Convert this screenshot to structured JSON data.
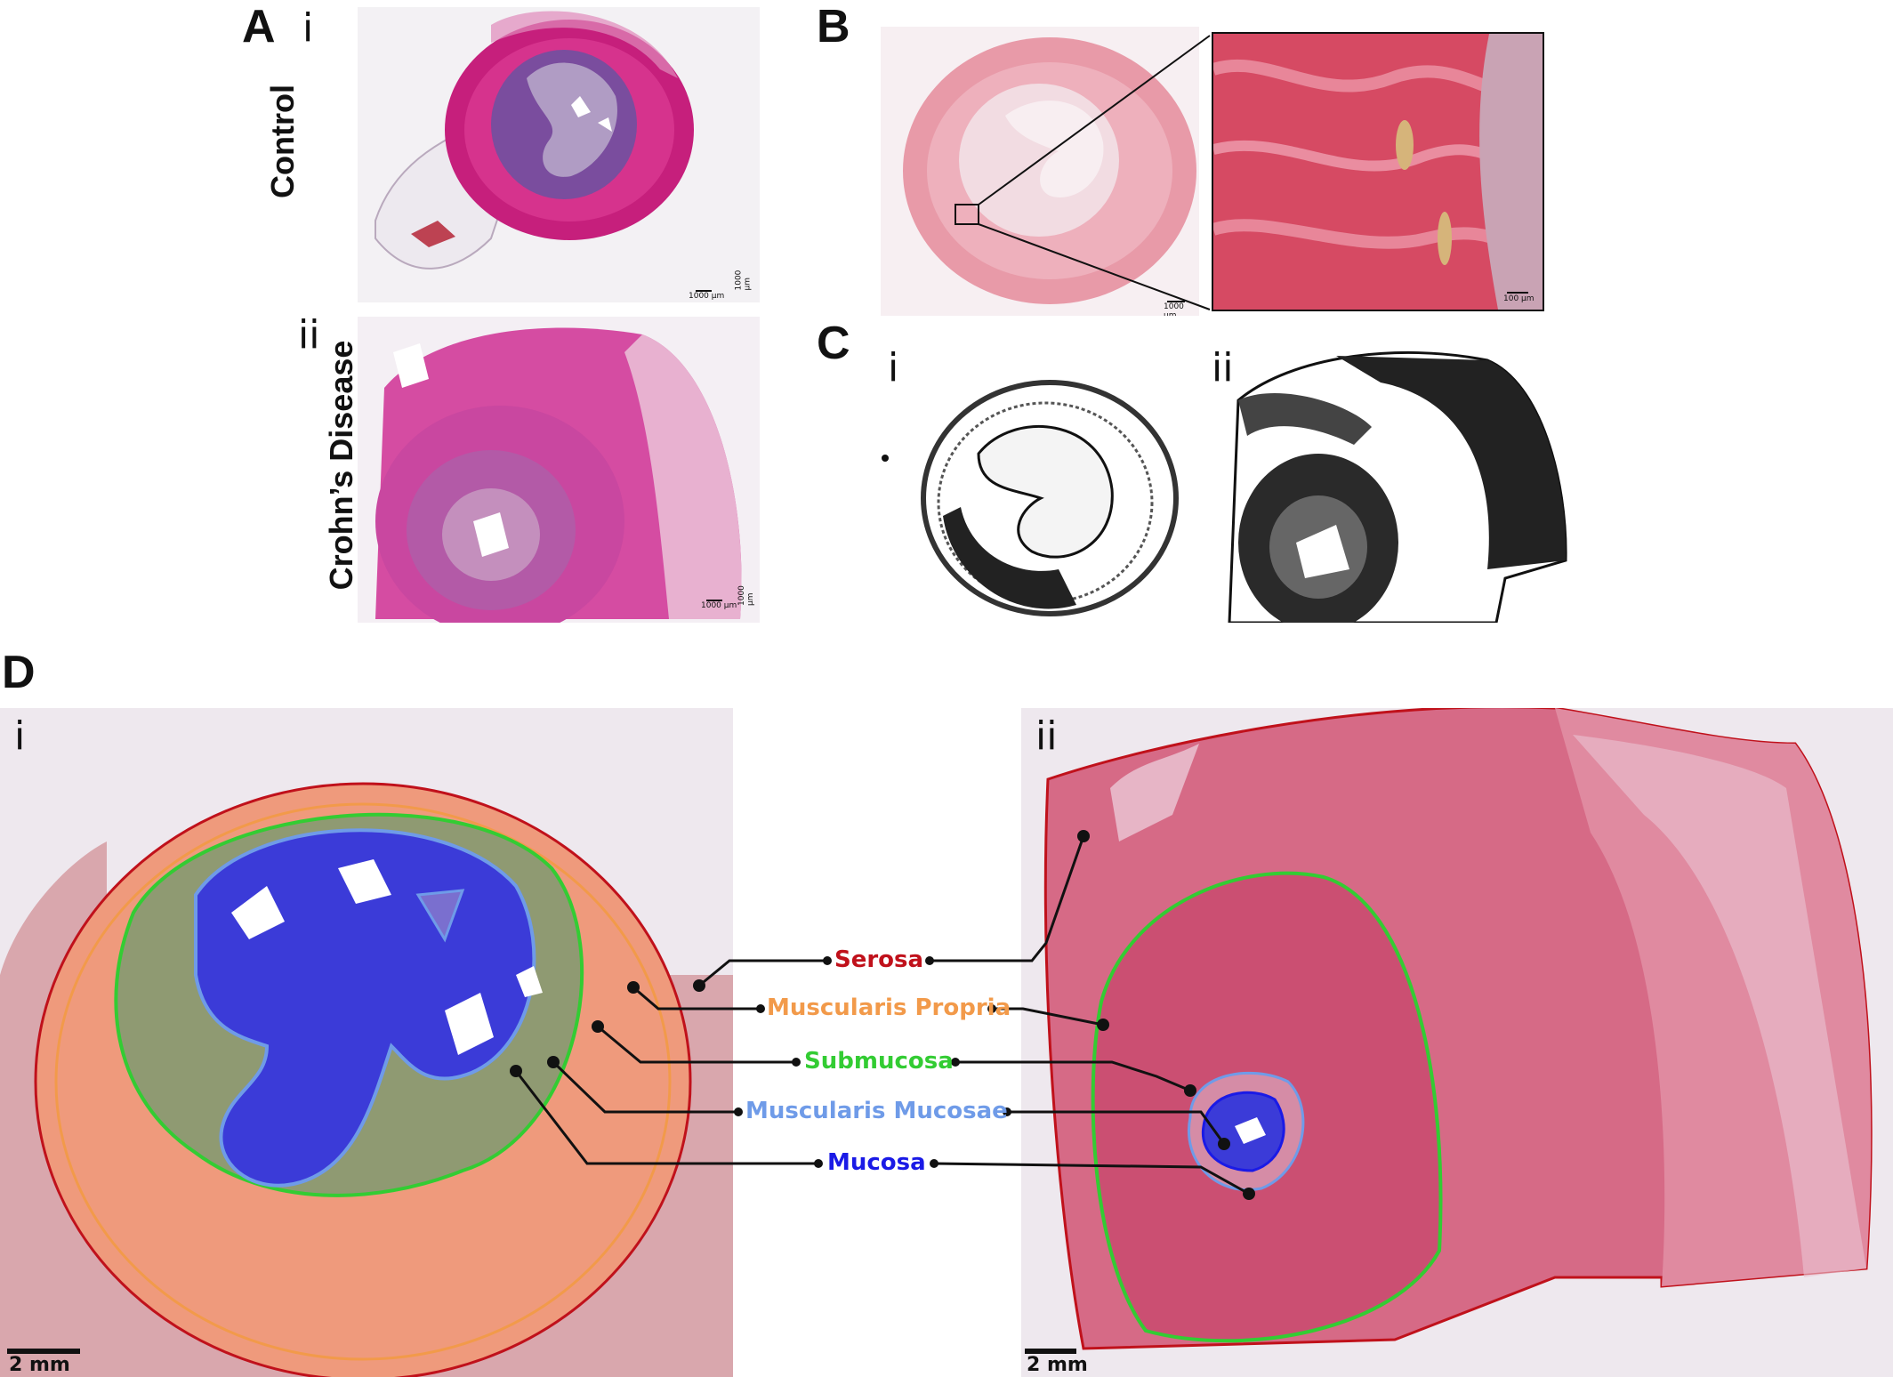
{
  "panels": {
    "A": {
      "letter": "A",
      "i": "i",
      "ii": "ii",
      "label_i": "Control",
      "label_ii": "Crohn’s Disease",
      "scale_i_h": "1000 µm",
      "scale_i_v": "1000 µm",
      "scale_ii_h": "1000 µm",
      "scale_ii_v": "1000 µm"
    },
    "B": {
      "letter": "B",
      "scale_left": "1000 µm",
      "scale_right": "100 µm"
    },
    "C": {
      "letter": "C",
      "i": "i",
      "ii": "ii"
    },
    "D": {
      "letter": "D",
      "i": "i",
      "ii": "ii",
      "scale_i": "2 mm",
      "scale_ii": "2 mm"
    }
  },
  "structures": [
    {
      "name": "Serosa",
      "color": "#c0111b"
    },
    {
      "name": "Muscularis Propria",
      "color": "#f29a4a"
    },
    {
      "name": "Submucosa",
      "color": "#33cc33"
    },
    {
      "name": "Muscularis Mucosae",
      "color": "#6f9be8"
    },
    {
      "name": "Mucosa",
      "color": "#1a1ae6"
    }
  ]
}
